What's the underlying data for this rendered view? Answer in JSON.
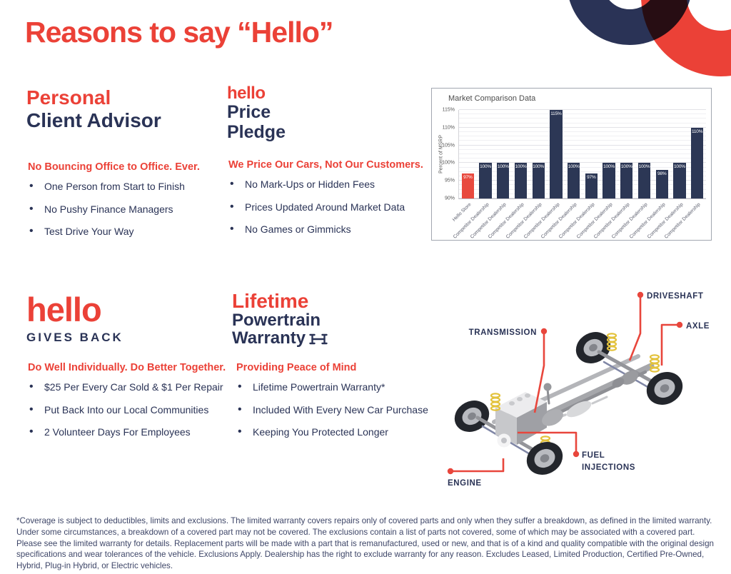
{
  "page_title": "Reasons to say “Hello”",
  "colors": {
    "accent_red": "#EB4137",
    "navy": "#2A3356",
    "bar_navy": "#2C3755",
    "bar_red": "#E8493E"
  },
  "sections": {
    "advisor": {
      "title_accent": "Personal",
      "title_main": "Client Advisor",
      "tagline": "No Bouncing Office to Office. Ever.",
      "bullets": [
        "One Person from Start to Finish",
        "No Pushy Finance Managers",
        "Test Drive Your Way"
      ]
    },
    "price_pledge": {
      "logo": "hello",
      "title_line1": "Price",
      "title_line2": "Pledge",
      "tagline": "We Price Our Cars, Not Our Customers.",
      "bullets": [
        "No Mark-Ups or Hidden Fees",
        "Prices Updated Around Market Data",
        "No Games or Gimmicks"
      ]
    },
    "gives_back": {
      "logo": "hello",
      "subtitle": "GIVES BACK",
      "tagline": "Do Well Individually. Do Better Together.",
      "bullets": [
        "$25 Per Every Car Sold & $1 Per Repair",
        "Put Back Into our Local Communities",
        "2 Volunteer Days For Employees"
      ]
    },
    "warranty": {
      "title_accent": "Lifetime",
      "title_line2": "Powertrain",
      "title_line3": "Warranty",
      "tagline": "Providing Peace of Mind",
      "bullets": [
        "Lifetime Powertrain Warranty*",
        "Included With Every New Car Purchase",
        "Keeping You Protected Longer"
      ]
    }
  },
  "chart_data": {
    "type": "bar",
    "title": "Market Comparison Data",
    "xlabel": "",
    "ylabel": "Percent of MSRP",
    "ylim": [
      90,
      115
    ],
    "ytick_step": 5,
    "yticks": [
      "90%",
      "95%",
      "100%",
      "105%",
      "110%",
      "115%"
    ],
    "grid": true,
    "legend": "none",
    "categories": [
      "Hello Store",
      "Competitor Dealership",
      "Competitor Dealership",
      "Competitor Dealership",
      "Competitor Dealership",
      "Competitor Dealership",
      "Competitor Dealership",
      "Competitor Dealership",
      "Competitor Dealership",
      "Competitor Dealership",
      "Competitor Dealership",
      "Competitor Dealership",
      "Competitor Dealership",
      "Competitor Dealership"
    ],
    "values": [
      97,
      100,
      100,
      100,
      100,
      115,
      100,
      97,
      100,
      100,
      100,
      98,
      100,
      110
    ],
    "value_label_suffix": "%",
    "highlight_index": 0,
    "highlight_color": "#E8493E",
    "bar_color": "#2C3755"
  },
  "diagram": {
    "labels": {
      "driveshaft": "DRIVESHAFT",
      "axle": "AXLE",
      "transmission": "TRANSMISSION",
      "fuel_line1": "FUEL",
      "fuel_line2": "INJECTIONS",
      "engine": "ENGINE"
    }
  },
  "footer": {
    "disclaimer": "*Coverage is subject to deductibles, limits and exclusions. The limited warranty covers repairs only of covered parts and only when they suffer a breakdown, as defined in the limited warranty. Under some circumstances, a breakdown of a covered part may not be covered. The exclusions contain a list of parts not covered, some of which may be associated with a covered part. Please see the limited warranty for details. Replacement parts will be made with a part that is remanufactured, used or new, and that is of a kind and quality compatible with the original design specifications and wear tolerances of the vehicle. Exclusions Apply. Dealership has the right to exclude warranty for any reason. Excludes Leased, Limited Production, Certified Pre-Owned, Hybrid, Plug-in Hybrid, or Electric vehicles."
  }
}
